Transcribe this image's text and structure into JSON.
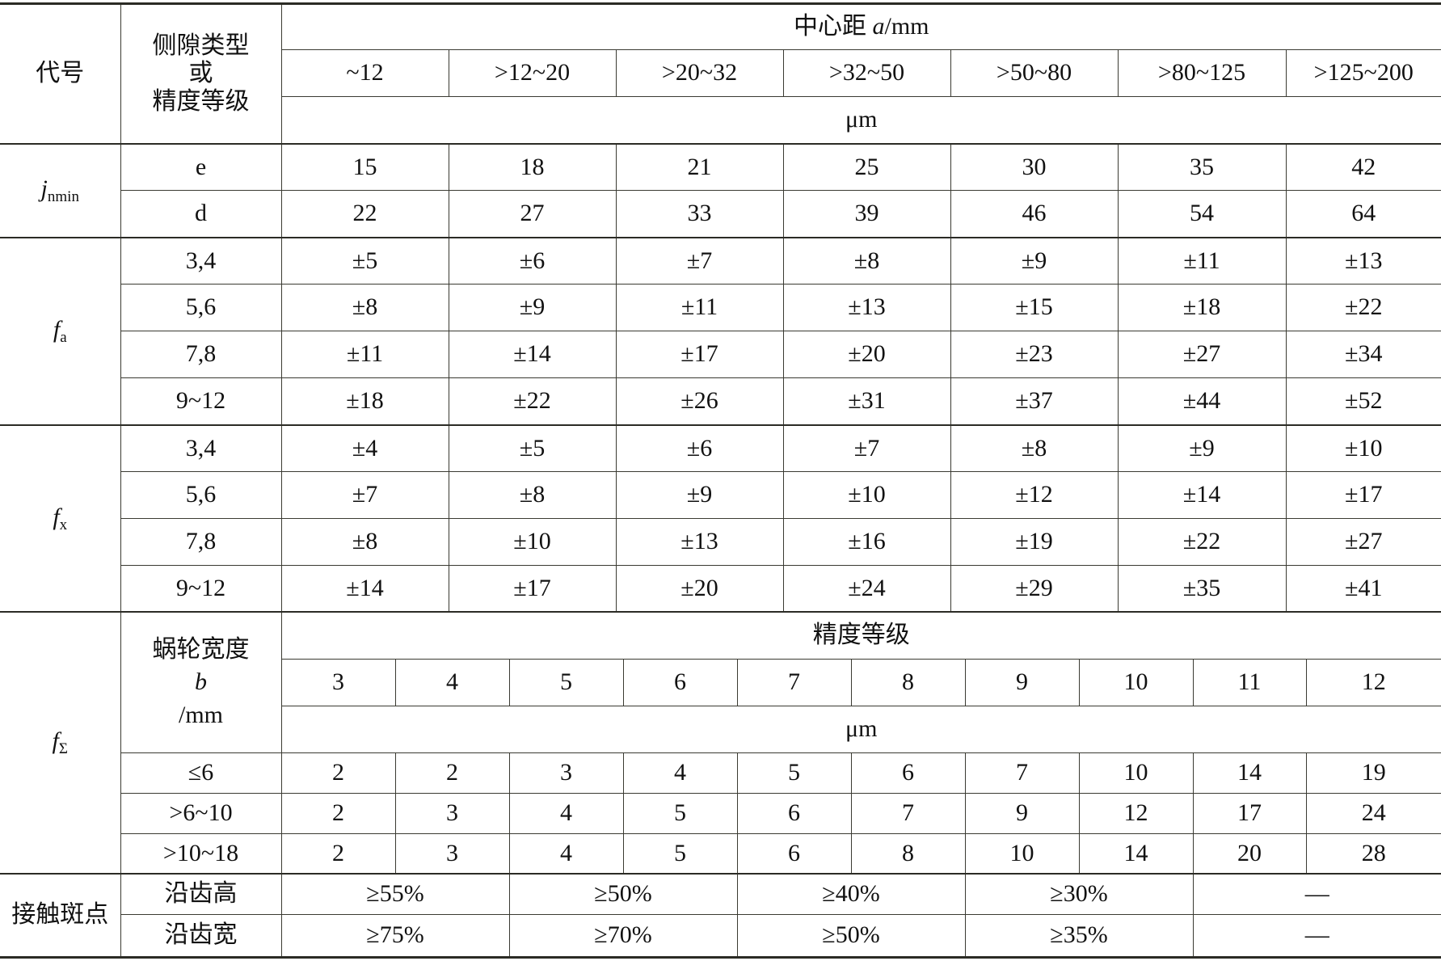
{
  "header": {
    "code_label": "代号",
    "type_label_lines": [
      "侧隙类型",
      "或",
      "精度等级"
    ],
    "center_distance_prefix": "中心距 ",
    "center_distance_var": "a",
    "center_distance_unit": "/mm",
    "ranges": [
      "~12",
      ">12~20",
      ">20~32",
      ">32~50",
      ">50~80",
      ">80~125",
      ">125~200"
    ],
    "unit": "μm"
  },
  "groups": [
    {
      "symbol": "j",
      "sub": "nmin",
      "rows": [
        {
          "label": "e",
          "values": [
            "15",
            "18",
            "21",
            "25",
            "30",
            "35",
            "42"
          ]
        },
        {
          "label": "d",
          "values": [
            "22",
            "27",
            "33",
            "39",
            "46",
            "54",
            "64"
          ]
        }
      ]
    },
    {
      "symbol": "f",
      "sub": "a",
      "rows": [
        {
          "label": "3,4",
          "values": [
            "±5",
            "±6",
            "±7",
            "±8",
            "±9",
            "±11",
            "±13"
          ]
        },
        {
          "label": "5,6",
          "values": [
            "±8",
            "±9",
            "±11",
            "±13",
            "±15",
            "±18",
            "±22"
          ]
        },
        {
          "label": "7,8",
          "values": [
            "±11",
            "±14",
            "±17",
            "±20",
            "±23",
            "±27",
            "±34"
          ]
        },
        {
          "label": "9~12",
          "values": [
            "±18",
            "±22",
            "±26",
            "±31",
            "±37",
            "±44",
            "±52"
          ]
        }
      ]
    },
    {
      "symbol": "f",
      "sub": "x",
      "rows": [
        {
          "label": "3,4",
          "values": [
            "±4",
            "±5",
            "±6",
            "±7",
            "±8",
            "±9",
            "±10"
          ]
        },
        {
          "label": "5,6",
          "values": [
            "±7",
            "±8",
            "±9",
            "±10",
            "±12",
            "±14",
            "±17"
          ]
        },
        {
          "label": "7,8",
          "values": [
            "±8",
            "±10",
            "±13",
            "±16",
            "±19",
            "±22",
            "±27"
          ]
        },
        {
          "label": "9~12",
          "values": [
            "±14",
            "±17",
            "±20",
            "±24",
            "±29",
            "±35",
            "±41"
          ]
        }
      ]
    }
  ],
  "f_sigma": {
    "symbol": "f",
    "sub": "Σ",
    "width_label_lines": [
      "蜗轮宽度",
      "b",
      "/mm"
    ],
    "grade_label": "精度等级",
    "grades": [
      "3",
      "4",
      "5",
      "6",
      "7",
      "8",
      "9",
      "10",
      "11",
      "12"
    ],
    "unit": "μm",
    "rows": [
      {
        "label": "≤6",
        "values": [
          "2",
          "2",
          "3",
          "4",
          "5",
          "6",
          "7",
          "10",
          "14",
          "19"
        ]
      },
      {
        "label": ">6~10",
        "values": [
          "2",
          "3",
          "4",
          "5",
          "6",
          "7",
          "9",
          "12",
          "17",
          "24"
        ]
      },
      {
        "label": ">10~18",
        "values": [
          "2",
          "3",
          "4",
          "5",
          "6",
          "8",
          "10",
          "14",
          "20",
          "28"
        ]
      }
    ]
  },
  "contact": {
    "label": "接触斑点",
    "rows": [
      {
        "label": "沿齿高",
        "values": [
          "≥55%",
          "≥50%",
          "≥40%",
          "≥30%",
          "—"
        ]
      },
      {
        "label": "沿齿宽",
        "values": [
          "≥75%",
          "≥70%",
          "≥50%",
          "≥35%",
          "—"
        ]
      }
    ]
  }
}
